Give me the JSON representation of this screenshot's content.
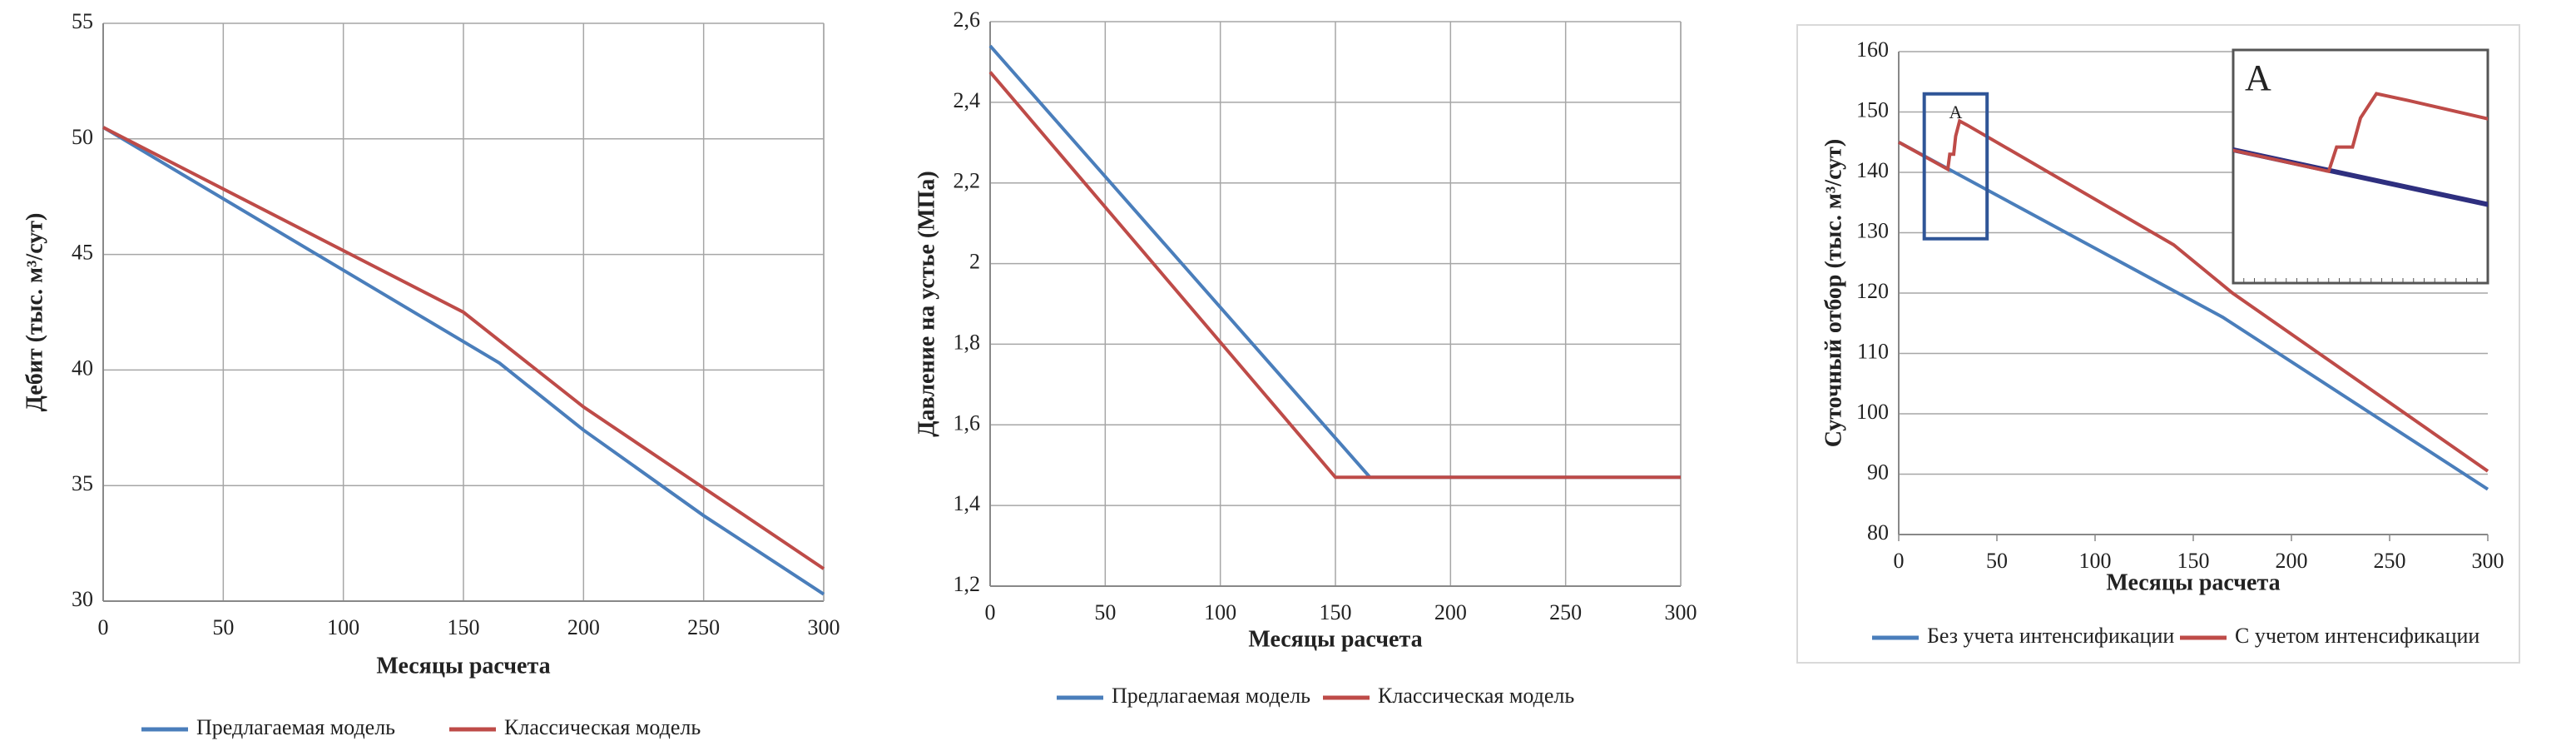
{
  "chart_data": [
    {
      "type": "line",
      "xlabel": "Месяцы расчета",
      "ylabel": "Дебит (тыс. м³/сут)",
      "xlim": [
        0,
        300
      ],
      "xticks": [
        0,
        50,
        100,
        150,
        200,
        250,
        300
      ],
      "ylim": [
        30,
        55
      ],
      "yticks": [
        30,
        35,
        40,
        45,
        50,
        55
      ],
      "grid": "both",
      "series": [
        {
          "name": "Предлагаемая модель",
          "color": "#4a7ebb",
          "x": [
            0,
            165,
            200,
            250,
            300
          ],
          "values": [
            50.5,
            40.3,
            37.4,
            33.7,
            30.3
          ]
        },
        {
          "name": "Классическая модель",
          "color": "#be4b48",
          "x": [
            0,
            150,
            200,
            250,
            300
          ],
          "values": [
            50.5,
            42.5,
            38.4,
            34.9,
            31.4
          ]
        }
      ]
    },
    {
      "type": "line",
      "xlabel": "Месяцы расчета",
      "ylabel": "Давление на устье (МПа)",
      "xlim": [
        0,
        300
      ],
      "xticks": [
        0,
        50,
        100,
        150,
        200,
        250,
        300
      ],
      "ylim": [
        1.2,
        2.6
      ],
      "yticks": [
        {
          "value": 1.2,
          "label": "1,2"
        },
        {
          "value": 1.4,
          "label": "1,4"
        },
        {
          "value": 1.6,
          "label": "1,6"
        },
        {
          "value": 1.8,
          "label": "1,8"
        },
        {
          "value": 2,
          "label": "2"
        },
        {
          "value": 2.2,
          "label": "2,2"
        },
        {
          "value": 2.4,
          "label": "2,4"
        },
        {
          "value": 2.6,
          "label": "2,6"
        }
      ],
      "grid": "both",
      "series": [
        {
          "name": "Предлагаемая модель",
          "color": "#4a7ebb",
          "x": [
            0,
            165,
            300
          ],
          "values": [
            2.54,
            1.47,
            1.47
          ]
        },
        {
          "name": "Классическая модель",
          "color": "#be4b48",
          "x": [
            0,
            150,
            300
          ],
          "values": [
            2.475,
            1.47,
            1.47
          ]
        }
      ]
    },
    {
      "type": "line",
      "xlabel": "Месяцы расчета",
      "ylabel": "Суточный отбор (тыс. м³/сут)",
      "xlim": [
        0,
        300
      ],
      "xticks": [
        0,
        50,
        100,
        150,
        200,
        250,
        300
      ],
      "ylim": [
        80,
        160
      ],
      "yticks": [
        80,
        90,
        100,
        110,
        120,
        130,
        140,
        150,
        160
      ],
      "grid": "y",
      "zoom": {
        "label": "A",
        "xlim": [
          13,
          45
        ],
        "ylim": [
          129,
          153
        ]
      },
      "series": [
        {
          "name": "Без учета интенсификации",
          "color": "#4a7ebb",
          "x": [
            0,
            165,
            300
          ],
          "values": [
            145,
            116,
            87.5
          ]
        },
        {
          "name": "С учетом интенсификации",
          "color": "#be4b48",
          "x": [
            0,
            25,
            26,
            28,
            29,
            31,
            35,
            140,
            170,
            300
          ],
          "values": [
            145,
            140.5,
            143,
            143,
            146,
            148.5,
            147.8,
            128,
            120,
            90.5
          ]
        }
      ]
    }
  ]
}
